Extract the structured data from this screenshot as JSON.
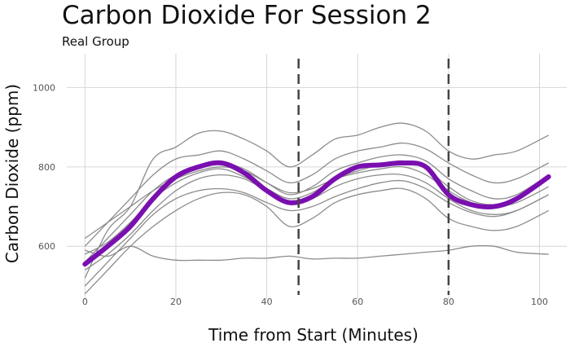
{
  "chart_data": {
    "type": "line",
    "title": "Carbon Dioxide For Session 2",
    "subtitle": "Real Group",
    "xlabel": "Time from Start (Minutes)",
    "ylabel": "Carbon Dioxide (ppm)",
    "xlim": [
      -4,
      106
    ],
    "ylim": [
      465,
      1085
    ],
    "x_ticks": [
      0,
      20,
      40,
      60,
      80,
      100
    ],
    "y_ticks": [
      600,
      800,
      1000
    ],
    "grid": true,
    "legend": "none",
    "vertical_lines": [
      47,
      80
    ],
    "colors": {
      "mean": "#7a0fb0",
      "individual": "#8c8c8c",
      "vline": "#444444",
      "grid": "#d6d6d6"
    },
    "series": [
      {
        "x": [
          0,
          5,
          10,
          15,
          20,
          25,
          30,
          35,
          40,
          45,
          50,
          55,
          60,
          65,
          70,
          75,
          80,
          85,
          90,
          95,
          102
        ],
        "values": [
          520,
          640,
          700,
          820,
          850,
          885,
          890,
          870,
          840,
          800,
          830,
          870,
          880,
          900,
          910,
          890,
          840,
          820,
          830,
          840,
          880
        ]
      },
      {
        "x": [
          0,
          5,
          10,
          15,
          20,
          25,
          30,
          35,
          40,
          45,
          50,
          55,
          60,
          65,
          70,
          75,
          80,
          85,
          90,
          95,
          102
        ],
        "values": [
          600,
          660,
          720,
          780,
          820,
          830,
          840,
          820,
          790,
          760,
          780,
          820,
          840,
          850,
          860,
          845,
          810,
          780,
          760,
          770,
          810
        ]
      },
      {
        "x": [
          0,
          5,
          10,
          15,
          20,
          25,
          30,
          35,
          40,
          45,
          50,
          55,
          60,
          65,
          70,
          75,
          80,
          85,
          90,
          95,
          102
        ],
        "values": [
          560,
          620,
          680,
          740,
          780,
          800,
          810,
          795,
          760,
          730,
          750,
          790,
          810,
          825,
          830,
          815,
          770,
          740,
          720,
          730,
          780
        ]
      },
      {
        "x": [
          0,
          5,
          10,
          15,
          20,
          25,
          30,
          35,
          40,
          45,
          50,
          55,
          60,
          65,
          70,
          75,
          80,
          85,
          90,
          95,
          102
        ],
        "values": [
          580,
          610,
          660,
          720,
          760,
          785,
          795,
          775,
          745,
          720,
          735,
          770,
          790,
          805,
          815,
          795,
          750,
          715,
          705,
          720,
          770
        ]
      },
      {
        "x": [
          0,
          5,
          10,
          15,
          20,
          25,
          30,
          35,
          40,
          45,
          50,
          55,
          60,
          65,
          70,
          75,
          80,
          85,
          90,
          95,
          102
        ],
        "values": [
          620,
          660,
          700,
          740,
          770,
          790,
          800,
          790,
          760,
          735,
          745,
          770,
          785,
          795,
          800,
          780,
          740,
          710,
          700,
          710,
          750
        ]
      },
      {
        "x": [
          0,
          5,
          10,
          15,
          20,
          25,
          30,
          35,
          40,
          45,
          50,
          55,
          60,
          65,
          70,
          75,
          80,
          85,
          90,
          95,
          102
        ],
        "values": [
          540,
          580,
          630,
          690,
          740,
          770,
          780,
          770,
          740,
          710,
          720,
          750,
          770,
          780,
          780,
          760,
          720,
          690,
          680,
          690,
          730
        ]
      },
      {
        "x": [
          0,
          5,
          10,
          15,
          20,
          25,
          30,
          35,
          40,
          45,
          50,
          55,
          60,
          65,
          70,
          75,
          80,
          85,
          90,
          95,
          102
        ],
        "values": [
          500,
          560,
          620,
          680,
          720,
          740,
          745,
          735,
          710,
          690,
          700,
          725,
          745,
          760,
          765,
          745,
          710,
          685,
          675,
          690,
          730
        ]
      },
      {
        "x": [
          0,
          5,
          10,
          15,
          20,
          25,
          30,
          35,
          40,
          45,
          50,
          55,
          60,
          65,
          70,
          75,
          80,
          85,
          90,
          95,
          102
        ],
        "values": [
          480,
          540,
          600,
          650,
          690,
          720,
          735,
          730,
          700,
          650,
          670,
          710,
          730,
          740,
          745,
          720,
          670,
          650,
          640,
          650,
          690
        ]
      },
      {
        "x": [
          0,
          5,
          10,
          15,
          20,
          25,
          30,
          35,
          40,
          45,
          50,
          55,
          60,
          65,
          70,
          75,
          80,
          85,
          90,
          95,
          102
        ],
        "values": [
          590,
          575,
          600,
          575,
          565,
          565,
          565,
          570,
          570,
          575,
          568,
          570,
          570,
          575,
          580,
          585,
          590,
          600,
          600,
          585,
          580
        ]
      },
      {
        "x": [
          0,
          5,
          10,
          15,
          20,
          25,
          30,
          35,
          40,
          45,
          50,
          55,
          60,
          65,
          70,
          75,
          80,
          85,
          90,
          95,
          102
        ],
        "values": [
          555,
          600,
          650,
          720,
          775,
          800,
          810,
          785,
          740,
          710,
          725,
          770,
          800,
          805,
          810,
          800,
          730,
          705,
          700,
          720,
          775
        ],
        "role": "mean"
      }
    ]
  }
}
